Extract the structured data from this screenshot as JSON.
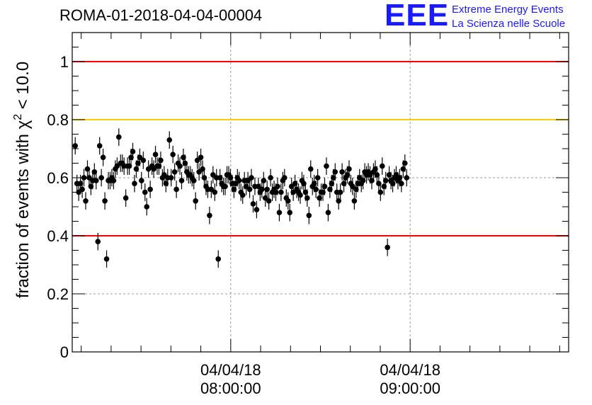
{
  "title": "ROMA-01-2018-04-04-00004",
  "logo": {
    "letters": "EEE",
    "line1": "Extreme Energy Events",
    "line2": "La Scienza nelle Scuole",
    "color": "#1a1aff"
  },
  "chart_data": {
    "type": "scatter",
    "title": "ROMA-01-2018-04-04-00004",
    "ylabel": "fraction of events with χ² < 10.0",
    "xlabel": "",
    "ylim": [
      0,
      1.1
    ],
    "xlim": [
      "07:07:00",
      "09:53:00"
    ],
    "yticks": [
      "0",
      "0.2",
      "0.4",
      "0.6",
      "0.8",
      "1"
    ],
    "xticks": [
      {
        "time": "08:00:00",
        "date_label": "04/04/18",
        "time_label": "08:00:00"
      },
      {
        "time": "09:00:00",
        "date_label": "04/04/18",
        "time_label": "09:00:00"
      }
    ],
    "reference_lines": [
      {
        "y": 1.0,
        "color": "#ff0000"
      },
      {
        "y": 0.8,
        "color": "#ffcc00"
      },
      {
        "y": 0.4,
        "color": "#ff0000"
      }
    ],
    "grid": "dotted",
    "series": [
      {
        "marker_color": "#000000",
        "x_start": "07:08:00",
        "x_step_seconds": 35,
        "y": [
          0.71,
          0.58,
          0.55,
          0.58,
          0.56,
          0.6,
          0.52,
          0.63,
          0.6,
          0.57,
          0.59,
          0.62,
          0.59,
          0.38,
          0.71,
          0.6,
          0.67,
          0.52,
          0.32,
          0.59,
          0.59,
          0.6,
          0.59,
          0.63,
          0.64,
          0.74,
          0.65,
          0.65,
          0.64,
          0.53,
          0.64,
          0.64,
          0.67,
          0.69,
          0.58,
          0.63,
          0.65,
          0.67,
          0.59,
          0.66,
          0.55,
          0.5,
          0.63,
          0.56,
          0.64,
          0.63,
          0.68,
          0.64,
          0.64,
          0.66,
          0.6,
          0.61,
          0.58,
          0.6,
          0.73,
          0.6,
          0.68,
          0.62,
          0.56,
          0.65,
          0.64,
          0.59,
          0.67,
          0.65,
          0.62,
          0.61,
          0.61,
          0.6,
          0.59,
          0.52,
          0.66,
          0.62,
          0.67,
          0.63,
          0.6,
          0.57,
          0.56,
          0.47,
          0.56,
          0.61,
          0.55,
          0.6,
          0.32,
          0.6,
          0.58,
          0.57,
          0.57,
          0.61,
          0.61,
          0.6,
          0.58,
          0.56,
          0.58,
          0.6,
          0.59,
          0.55,
          0.54,
          0.59,
          0.57,
          0.59,
          0.56,
          0.6,
          0.51,
          0.57,
          0.49,
          0.57,
          0.55,
          0.56,
          0.59,
          0.53,
          0.56,
          0.52,
          0.6,
          0.55,
          0.56,
          0.55,
          0.57,
          0.48,
          0.55,
          0.59,
          0.6,
          0.53,
          0.52,
          0.48,
          0.57,
          0.55,
          0.58,
          0.56,
          0.55,
          0.54,
          0.59,
          0.58,
          0.55,
          0.53,
          0.47,
          0.63,
          0.57,
          0.58,
          0.56,
          0.6,
          0.53,
          0.55,
          0.55,
          0.57,
          0.64,
          0.48,
          0.56,
          0.58,
          0.6,
          0.62,
          0.55,
          0.52,
          0.55,
          0.62,
          0.58,
          0.6,
          0.61,
          0.63,
          0.58,
          0.57,
          0.52,
          0.56,
          0.58,
          0.6,
          0.58,
          0.59,
          0.62,
          0.61,
          0.62,
          0.61,
          0.59,
          0.62,
          0.63,
          0.61,
          0.58,
          0.55,
          0.64,
          0.57,
          0.59,
          0.36,
          0.61,
          0.59,
          0.58,
          0.6,
          0.61,
          0.59,
          0.6,
          0.58,
          0.63,
          0.65,
          0.6
        ]
      }
    ]
  }
}
